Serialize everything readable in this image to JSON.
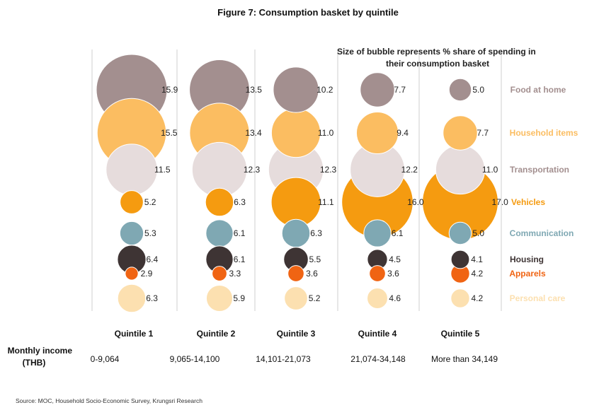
{
  "chart_data": {
    "type": "bubble",
    "title": "Figure 7: Consumption basket by quintile",
    "note": [
      "Size of bubble represents % share of spending in",
      "their consumption basket"
    ],
    "categories": [
      "Quintile 1",
      "Quintile 2",
      "Quintile 3",
      "Quintile 4",
      "Quintile 5"
    ],
    "income_label": [
      "Monthly income",
      "(THB)"
    ],
    "income": [
      "0-9,064",
      "9,065-14,100",
      "14,101-21,073",
      "21,074-34,148",
      "More than 34,149"
    ],
    "series": [
      {
        "name": "Food at home",
        "color": "#a38f8f",
        "values": [
          15.9,
          13.5,
          10.2,
          7.7,
          5.0
        ]
      },
      {
        "name": "Household items",
        "color": "#fbbd61",
        "values": [
          15.5,
          13.4,
          11.0,
          9.4,
          7.7
        ]
      },
      {
        "name": "Transportation",
        "color": "#e6dcdc",
        "label_color": "#a38f8f",
        "values": [
          11.5,
          12.3,
          12.3,
          12.2,
          11.0
        ]
      },
      {
        "name": "Vehicles",
        "color": "#f59b10",
        "values": [
          5.2,
          6.3,
          11.1,
          16.0,
          17.0
        ]
      },
      {
        "name": "Communication",
        "color": "#7fa8b3",
        "values": [
          5.3,
          6.1,
          6.3,
          6.1,
          5.0
        ]
      },
      {
        "name": "Housing",
        "color": "#3e3434",
        "values": [
          6.4,
          6.1,
          5.5,
          4.5,
          4.1
        ]
      },
      {
        "name": "Apparels",
        "color": "#f06413",
        "values": [
          2.9,
          3.3,
          3.6,
          3.6,
          4.2
        ]
      },
      {
        "name": "Personal care",
        "color": "#fce0b0",
        "values": [
          6.3,
          5.9,
          5.2,
          4.6,
          4.2
        ]
      }
    ],
    "source": "Source: MOC, Household Socio-Economic Survey, Krungsri Research"
  }
}
